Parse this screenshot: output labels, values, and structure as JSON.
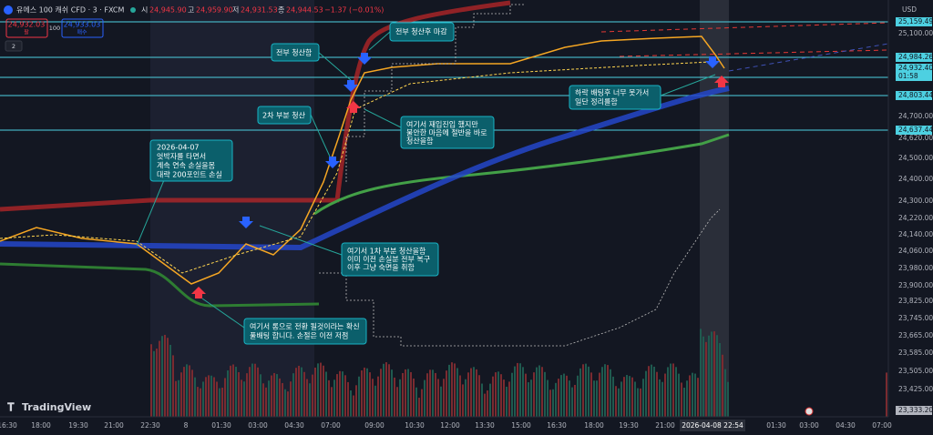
{
  "header": {
    "symbol": "유에스 100 캐쉬 CFD · 3 · FXCM",
    "open_label": "시",
    "open": "24,945.90",
    "high_label": "고",
    "high": "24,959.90",
    "low_label": "저",
    "low": "24,931.53",
    "close_label": "종",
    "close": "24,944.53",
    "change": "−1.37 (−0.01%)"
  },
  "trade": {
    "sell_price": "24,932.03",
    "sell_label": "팔",
    "spread": "100",
    "buy_price": "24,933.03",
    "buy_label": "매수",
    "indicator_count": "2"
  },
  "currency": "USD",
  "price_axis": [
    "25,100.00",
    "24,700.00",
    "24,620.00",
    "24,500.00",
    "24,400.00",
    "24,300.00",
    "24,220.00",
    "24,140.00",
    "24,060.00",
    "23,980.00",
    "23,900.00",
    "23,825.00",
    "23,745.00",
    "23,665.00",
    "23,585.00",
    "23,505.00",
    "23,425.00"
  ],
  "price_tags": [
    "25,159.49",
    "24,984.26",
    "24,932.40",
    "01:58",
    "24,803.44",
    "24,637.44",
    "23,333.20"
  ],
  "time_axis": [
    "16:30",
    "18:00",
    "19:30",
    "21:00",
    "22:30",
    "8",
    "01:30",
    "03:00",
    "04:30",
    "07:00",
    "09:00",
    "10:30",
    "12:00",
    "13:30",
    "15:00",
    "16:30",
    "18:00",
    "19:30",
    "21:00",
    "01:30",
    "03:00",
    "04:30",
    "07:00"
  ],
  "cursor_time": "2026-04-08   22:54",
  "annotations": [
    {
      "lines": [
        "전부 청산후 마감"
      ]
    },
    {
      "lines": [
        "전부 청산함"
      ]
    },
    {
      "lines": [
        "2차 부분 청산"
      ]
    },
    {
      "lines": [
        "2026-04-07",
        "엇박자를 타면서",
        "계속 연속 손실을봄",
        "대략 200포인트 손실"
      ]
    },
    {
      "lines": [
        "여기서 재입진입 했지만",
        "불안한 마음에 절반을 바로",
        "청산을함"
      ]
    },
    {
      "lines": [
        "하락 배팅후 너무 못가서",
        "일단 정리를함"
      ]
    },
    {
      "lines": [
        "여기서 1차 부분 청산을함",
        "이미 이전 손실분 전부 복구",
        "이후 그냥 숙면을 취함"
      ]
    },
    {
      "lines": [
        "여기서 롱으로 전환 될것이라는 확신",
        "풀배팅 합니다. 손절은 이전 저점"
      ]
    }
  ],
  "brand": "TradingView"
}
